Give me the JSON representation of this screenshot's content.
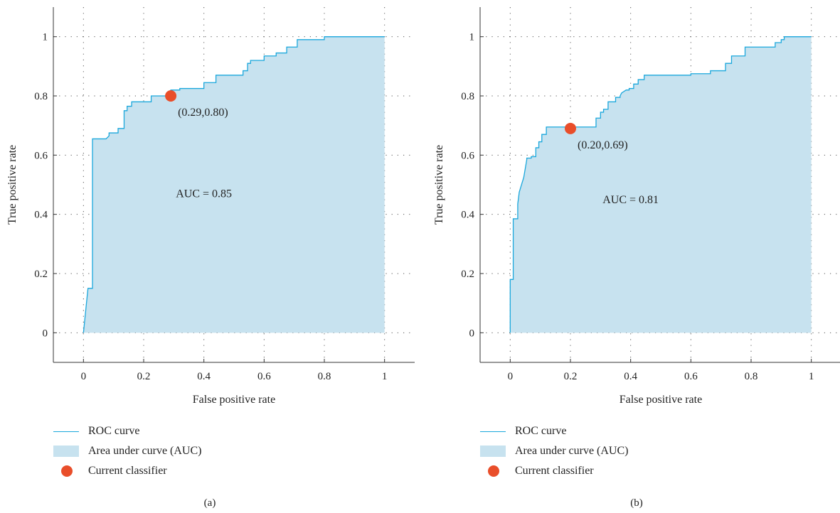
{
  "chart_data": [
    {
      "type": "area",
      "panel": "(a)",
      "xlabel": "False positive rate",
      "ylabel": "True positive rate",
      "xlim": [
        -0.1,
        1.1
      ],
      "ylim": [
        -0.1,
        1.1
      ],
      "xticks": [
        "0",
        "0.2",
        "0.4",
        "0.6",
        "0.8",
        "1"
      ],
      "xtick_values": [
        0,
        0.2,
        0.4,
        0.6,
        0.8,
        1
      ],
      "yticks": [
        "0",
        "0.2",
        "0.4",
        "0.6",
        "0.8",
        "1"
      ],
      "ytick_values": [
        0,
        0.2,
        0.4,
        0.6,
        0.8,
        1
      ],
      "grid": "dotted",
      "auc_label": "AUC = 0.85",
      "auc_label_pos": [
        0.4,
        0.47
      ],
      "point": {
        "x": 0.29,
        "y": 0.8,
        "label": "(0.29,0.80)"
      },
      "series": [
        {
          "name": "ROC curve",
          "x": [
            0,
            0.015,
            0.015,
            0.03,
            0.03,
            0.075,
            0.085,
            0.085,
            0.115,
            0.115,
            0.135,
            0.135,
            0.145,
            0.145,
            0.16,
            0.16,
            0.175,
            0.175,
            0.225,
            0.225,
            0.29,
            0.29,
            0.32,
            0.32,
            0.4,
            0.4,
            0.44,
            0.44,
            0.53,
            0.53,
            0.545,
            0.545,
            0.555,
            0.555,
            0.6,
            0.6,
            0.64,
            0.64,
            0.675,
            0.675,
            0.71,
            0.71,
            0.8,
            0.8,
            1
          ],
          "y": [
            0,
            0.15,
            0.15,
            0.15,
            0.655,
            0.655,
            0.665,
            0.675,
            0.675,
            0.69,
            0.69,
            0.75,
            0.75,
            0.765,
            0.765,
            0.78,
            0.78,
            0.78,
            0.78,
            0.8,
            0.8,
            0.82,
            0.82,
            0.825,
            0.825,
            0.845,
            0.845,
            0.87,
            0.87,
            0.885,
            0.885,
            0.91,
            0.91,
            0.92,
            0.92,
            0.935,
            0.935,
            0.945,
            0.945,
            0.965,
            0.965,
            0.99,
            0.99,
            1.0,
            1.0
          ]
        }
      ]
    },
    {
      "type": "area",
      "panel": "(b)",
      "xlabel": "False positive rate",
      "ylabel": "True positive rate",
      "xlim": [
        -0.1,
        1.1
      ],
      "ylim": [
        -0.1,
        1.1
      ],
      "xticks": [
        "0",
        "0.2",
        "0.4",
        "0.6",
        "0.8",
        "1"
      ],
      "xtick_values": [
        0,
        0.2,
        0.4,
        0.6,
        0.8,
        1
      ],
      "yticks": [
        "0",
        "0.2",
        "0.4",
        "0.6",
        "0.8",
        "1"
      ],
      "ytick_values": [
        0,
        0.2,
        0.4,
        0.6,
        0.8,
        1
      ],
      "grid": "dotted",
      "auc_label": "AUC = 0.81",
      "auc_label_pos": [
        0.4,
        0.45
      ],
      "point": {
        "x": 0.2,
        "y": 0.69,
        "label": "(0.20,0.69)"
      },
      "series": [
        {
          "name": "ROC curve",
          "x": [
            0,
            0,
            0.01,
            0.01,
            0.02,
            0.02,
            0.025,
            0.025,
            0.03,
            0.045,
            0.055,
            0.055,
            0.07,
            0.07,
            0.085,
            0.085,
            0.095,
            0.095,
            0.105,
            0.105,
            0.12,
            0.12,
            0.285,
            0.285,
            0.3,
            0.3,
            0.31,
            0.31,
            0.325,
            0.325,
            0.35,
            0.35,
            0.365,
            0.365,
            0.37,
            0.385,
            0.395,
            0.395,
            0.41,
            0.41,
            0.425,
            0.425,
            0.445,
            0.445,
            0.6,
            0.6,
            0.665,
            0.665,
            0.715,
            0.715,
            0.735,
            0.735,
            0.78,
            0.78,
            0.88,
            0.88,
            0.9,
            0.9,
            0.91,
            0.91,
            0.925,
            0.925,
            1
          ],
          "y": [
            0,
            0.18,
            0.18,
            0.385,
            0.385,
            0.385,
            0.385,
            0.435,
            0.475,
            0.525,
            0.585,
            0.59,
            0.59,
            0.595,
            0.595,
            0.625,
            0.625,
            0.645,
            0.645,
            0.67,
            0.67,
            0.695,
            0.695,
            0.725,
            0.725,
            0.745,
            0.745,
            0.755,
            0.755,
            0.78,
            0.78,
            0.795,
            0.795,
            0.8,
            0.81,
            0.82,
            0.82,
            0.825,
            0.825,
            0.84,
            0.84,
            0.855,
            0.855,
            0.87,
            0.87,
            0.875,
            0.875,
            0.885,
            0.885,
            0.91,
            0.91,
            0.935,
            0.935,
            0.965,
            0.965,
            0.98,
            0.98,
            0.99,
            0.99,
            1.0,
            1.0,
            1.0,
            1.0
          ]
        }
      ]
    }
  ],
  "legend": {
    "roc_curve": "ROC curve",
    "auc_area": "Area under curve (AUC)",
    "current_classifier": "Current classifier"
  },
  "colors": {
    "roc_line": "#1aa7dc",
    "auc_fill": "#c7e2ef",
    "point": "#e94e2a",
    "axis": "#333333",
    "grid": "#555555"
  },
  "captions": {
    "a": "(a)",
    "b": "(b)"
  }
}
